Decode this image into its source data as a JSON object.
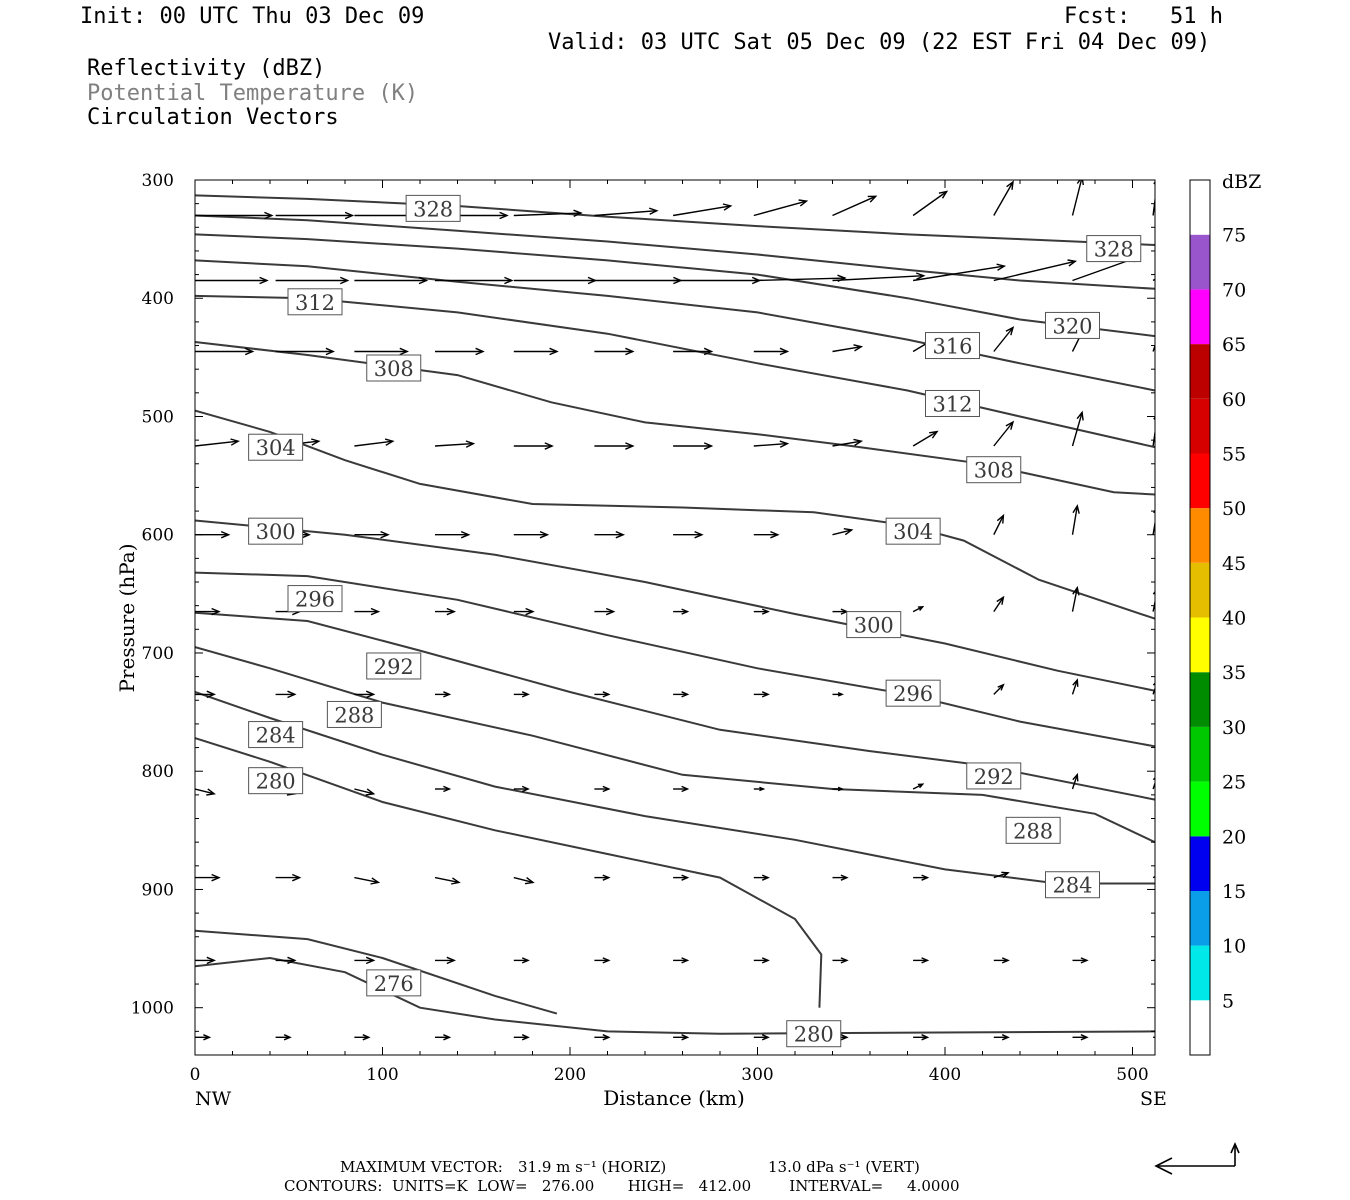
{
  "header": {
    "init": "Init: 00 UTC Thu 03 Dec 09",
    "fcst": "Fcst:   51 h",
    "valid": "Valid: 03 UTC Sat 05 Dec 09 (22 EST Fri 04 Dec 09)",
    "legend_lines": [
      "Reflectivity (dBZ)",
      "Potential Temperature (K)",
      "Circulation Vectors"
    ]
  },
  "footer": {
    "max_vector_label": "MAXIMUM VECTOR:",
    "horiz": "31.9 m s⁻¹ (HORIZ)",
    "vert": "13.0 dPa s⁻¹ (VERT)",
    "contours": "CONTOURS:  UNITS=K  LOW=   276.00       HIGH=   412.00        INTERVAL=     4.0000"
  },
  "colors": {
    "contour": "#3a3a3a",
    "colorbar": [
      "#ffffff",
      "#00e8e8",
      "#0a9ee8",
      "#0000f0",
      "#00ff00",
      "#00c800",
      "#008c00",
      "#ffff00",
      "#e6be00",
      "#ff8c00",
      "#ff0000",
      "#d60000",
      "#bc0000",
      "#ff00ff",
      "#9955cc",
      "#ffffff"
    ]
  },
  "chart_data": {
    "type": "contour",
    "xlabel": "Distance (km)",
    "ylabel": "Pressure (hPa)",
    "xlim": [
      0,
      512
    ],
    "ylim": [
      300,
      1040
    ],
    "x_ticks": [
      0,
      100,
      200,
      300,
      400,
      500
    ],
    "y_ticks": [
      300,
      400,
      500,
      600,
      700,
      800,
      900,
      1000
    ],
    "x_endpoints": [
      "NW",
      "SE"
    ],
    "colorbar": {
      "unit": "dBZ",
      "levels": [
        5,
        10,
        15,
        20,
        25,
        30,
        35,
        40,
        45,
        50,
        55,
        60,
        65,
        70,
        75
      ]
    },
    "contours": [
      {
        "theta": 328,
        "points": [
          [
            0,
            313
          ],
          [
            60,
            316
          ],
          [
            140,
            322
          ],
          [
            220,
            331
          ],
          [
            300,
            339
          ],
          [
            380,
            346
          ],
          [
            440,
            350
          ],
          [
            512,
            355
          ]
        ]
      },
      {
        "theta": 324,
        "points": [
          [
            0,
            330
          ],
          [
            60,
            334
          ],
          [
            140,
            343
          ],
          [
            220,
            352
          ],
          [
            300,
            363
          ],
          [
            380,
            376
          ],
          [
            440,
            385
          ],
          [
            512,
            392
          ]
        ]
      },
      {
        "theta": 320,
        "points": [
          [
            0,
            346
          ],
          [
            60,
            350
          ],
          [
            140,
            358
          ],
          [
            220,
            368
          ],
          [
            300,
            380
          ],
          [
            380,
            400
          ],
          [
            440,
            418
          ],
          [
            512,
            432
          ]
        ]
      },
      {
        "theta": 316,
        "points": [
          [
            0,
            368
          ],
          [
            60,
            373
          ],
          [
            140,
            386
          ],
          [
            220,
            398
          ],
          [
            300,
            412
          ],
          [
            380,
            435
          ],
          [
            440,
            455
          ],
          [
            512,
            478
          ]
        ]
      },
      {
        "theta": 312,
        "points": [
          [
            0,
            398
          ],
          [
            60,
            400
          ],
          [
            140,
            412
          ],
          [
            220,
            430
          ],
          [
            300,
            455
          ],
          [
            380,
            478
          ],
          [
            440,
            500
          ],
          [
            512,
            526
          ]
        ]
      },
      {
        "theta": 308,
        "points": [
          [
            0,
            437
          ],
          [
            60,
            448
          ],
          [
            140,
            465
          ],
          [
            190,
            488
          ],
          [
            240,
            505
          ],
          [
            300,
            515
          ],
          [
            350,
            525
          ],
          [
            420,
            540
          ],
          [
            490,
            564
          ],
          [
            512,
            566
          ]
        ]
      },
      {
        "theta": 304,
        "points": [
          [
            0,
            495
          ],
          [
            40,
            513
          ],
          [
            80,
            537
          ],
          [
            120,
            557
          ],
          [
            180,
            574
          ],
          [
            260,
            577
          ],
          [
            330,
            581
          ],
          [
            380,
            592
          ],
          [
            410,
            605
          ],
          [
            450,
            638
          ],
          [
            512,
            671
          ]
        ]
      },
      {
        "theta": 300,
        "points": [
          [
            0,
            588
          ],
          [
            80,
            600
          ],
          [
            160,
            617
          ],
          [
            240,
            640
          ],
          [
            320,
            667
          ],
          [
            400,
            692
          ],
          [
            460,
            715
          ],
          [
            512,
            732
          ]
        ]
      },
      {
        "theta": 296,
        "points": [
          [
            0,
            632
          ],
          [
            60,
            635
          ],
          [
            140,
            655
          ],
          [
            220,
            685
          ],
          [
            300,
            713
          ],
          [
            380,
            735
          ],
          [
            440,
            758
          ],
          [
            512,
            779
          ]
        ]
      },
      {
        "theta": 292,
        "points": [
          [
            0,
            666
          ],
          [
            60,
            673
          ],
          [
            120,
            698
          ],
          [
            200,
            733
          ],
          [
            280,
            765
          ],
          [
            360,
            783
          ],
          [
            420,
            795
          ],
          [
            512,
            824
          ]
        ]
      },
      {
        "theta": 288,
        "points": [
          [
            0,
            695
          ],
          [
            40,
            713
          ],
          [
            100,
            742
          ],
          [
            180,
            770
          ],
          [
            260,
            803
          ],
          [
            340,
            815
          ],
          [
            420,
            820
          ],
          [
            480,
            836
          ],
          [
            512,
            860
          ]
        ]
      },
      {
        "theta": 284,
        "points": [
          [
            0,
            733
          ],
          [
            40,
            755
          ],
          [
            100,
            786
          ],
          [
            160,
            813
          ],
          [
            240,
            838
          ],
          [
            320,
            858
          ],
          [
            400,
            883
          ],
          [
            460,
            895
          ],
          [
            512,
            895
          ]
        ]
      },
      {
        "theta": 280,
        "points": [
          [
            0,
            772
          ],
          [
            40,
            792
          ],
          [
            100,
            826
          ],
          [
            160,
            850
          ],
          [
            220,
            870
          ],
          [
            280,
            890
          ],
          [
            320,
            925
          ],
          [
            334,
            955
          ],
          [
            333,
            1000
          ]
        ]
      },
      {
        "theta": 280,
        "points": [
          [
            0,
            965
          ],
          [
            40,
            958
          ],
          [
            80,
            970
          ],
          [
            120,
            1000
          ],
          [
            160,
            1010
          ],
          [
            220,
            1020
          ],
          [
            280,
            1022
          ],
          [
            512,
            1020
          ]
        ]
      },
      {
        "theta": 276,
        "points": [
          [
            0,
            935
          ],
          [
            60,
            942
          ],
          [
            100,
            958
          ],
          [
            160,
            990
          ],
          [
            193,
            1005
          ]
        ]
      }
    ],
    "contour_labels": [
      {
        "text": "328",
        "x": 127,
        "p": 324
      },
      {
        "text": "328",
        "x": 490,
        "p": 358
      },
      {
        "text": "312",
        "x": 64,
        "p": 403
      },
      {
        "text": "320",
        "x": 468,
        "p": 423
      },
      {
        "text": "316",
        "x": 404,
        "p": 440
      },
      {
        "text": "308",
        "x": 106,
        "p": 459
      },
      {
        "text": "312",
        "x": 404,
        "p": 489
      },
      {
        "text": "304",
        "x": 43,
        "p": 526
      },
      {
        "text": "308",
        "x": 426,
        "p": 545
      },
      {
        "text": "300",
        "x": 43,
        "p": 597
      },
      {
        "text": "304",
        "x": 383,
        "p": 597
      },
      {
        "text": "296",
        "x": 64,
        "p": 654
      },
      {
        "text": "300",
        "x": 362,
        "p": 676
      },
      {
        "text": "292",
        "x": 106,
        "p": 711
      },
      {
        "text": "296",
        "x": 383,
        "p": 734
      },
      {
        "text": "288",
        "x": 85,
        "p": 752
      },
      {
        "text": "284",
        "x": 43,
        "p": 769
      },
      {
        "text": "292",
        "x": 426,
        "p": 804
      },
      {
        "text": "280",
        "x": 43,
        "p": 808
      },
      {
        "text": "288",
        "x": 447,
        "p": 850
      },
      {
        "text": "284",
        "x": 468,
        "p": 896
      },
      {
        "text": "276",
        "x": 106,
        "p": 979
      },
      {
        "text": "280",
        "x": 330,
        "p": 1022
      }
    ],
    "vectors": {
      "x": [
        0,
        43,
        85,
        128,
        170,
        213,
        255,
        298,
        340,
        383,
        426,
        468,
        511
      ],
      "p": [
        330,
        385,
        445,
        525,
        600,
        665,
        735,
        815,
        890,
        960,
        1025
      ],
      "u": [
        [
          1.6,
          1.6,
          1.5,
          1.5,
          1.4,
          1.3,
          1.2,
          1.1,
          0.9,
          0.7,
          0.4,
          0.2,
          0.1
        ],
        [
          1.5,
          1.5,
          1.5,
          1.6,
          1.7,
          1.8,
          1.8,
          1.9,
          1.9,
          1.9,
          1.7,
          1.4,
          0.9
        ],
        [
          1.2,
          1.2,
          1.1,
          1.0,
          0.9,
          0.8,
          0.8,
          0.7,
          0.6,
          0.5,
          0.4,
          0.3,
          0.2
        ],
        [
          0.9,
          0.9,
          0.8,
          0.8,
          0.8,
          0.8,
          0.8,
          0.7,
          0.6,
          0.5,
          0.4,
          0.2,
          0.1
        ],
        [
          0.7,
          0.7,
          0.7,
          0.7,
          0.7,
          0.6,
          0.6,
          0.5,
          0.4,
          0.3,
          0.2,
          0.1,
          0.1
        ],
        [
          0.5,
          0.5,
          0.5,
          0.4,
          0.4,
          0.4,
          0.3,
          0.3,
          0.3,
          0.2,
          0.2,
          0.1,
          0.1
        ],
        [
          0.4,
          0.4,
          0.4,
          0.3,
          0.3,
          0.3,
          0.3,
          0.3,
          0.2,
          0.2,
          0.2,
          0.1,
          0.1
        ],
        [
          0.4,
          0.4,
          0.4,
          0.3,
          0.3,
          0.3,
          0.3,
          0.2,
          0.2,
          0.2,
          0.1,
          0.1,
          0.1
        ],
        [
          0.5,
          0.5,
          0.5,
          0.5,
          0.4,
          0.3,
          0.3,
          0.3,
          0.3,
          0.3,
          0.3,
          0.3,
          0.2
        ],
        [
          0.4,
          0.4,
          0.4,
          0.4,
          0.3,
          0.3,
          0.3,
          0.3,
          0.3,
          0.3,
          0.3,
          0.3,
          0.2
        ],
        [
          0.3,
          0.3,
          0.3,
          0.3,
          0.3,
          0.3,
          0.3,
          0.3,
          0.3,
          0.3,
          0.3,
          0.3,
          0.2
        ]
      ],
      "w": [
        [
          0,
          0,
          0,
          0,
          0.05,
          0.1,
          0.2,
          0.3,
          0.4,
          0.5,
          0.7,
          0.8,
          0.8
        ],
        [
          0,
          0,
          0,
          0,
          0,
          0,
          0,
          0.05,
          0.1,
          0.3,
          0.4,
          0.5,
          0.6
        ],
        [
          0,
          0,
          0,
          0,
          0,
          0,
          0,
          0,
          0.1,
          0.3,
          0.5,
          0.6,
          0.6
        ],
        [
          0.1,
          0.1,
          0.1,
          0.05,
          0,
          0,
          0,
          0.05,
          0.1,
          0.3,
          0.5,
          0.7,
          0.7
        ],
        [
          0,
          0,
          0,
          0,
          0,
          0,
          0,
          0,
          0.1,
          0.2,
          0.4,
          0.6,
          0.6
        ],
        [
          0,
          0,
          0,
          0,
          0,
          0,
          0,
          0,
          0,
          0.1,
          0.3,
          0.5,
          0.5
        ],
        [
          0,
          0,
          0,
          0,
          0,
          0,
          0,
          0,
          0,
          0.1,
          0.2,
          0.3,
          0.3
        ],
        [
          -0.1,
          -0.1,
          -0.1,
          0,
          0,
          0,
          0,
          0,
          0,
          0.1,
          0.2,
          0.3,
          0.3
        ],
        [
          0,
          0,
          -0.1,
          -0.1,
          -0.1,
          0,
          0,
          0,
          0,
          0,
          0.1,
          0.1,
          0.1
        ],
        [
          0,
          0,
          0,
          0,
          0,
          0,
          0,
          0,
          0,
          0,
          0,
          0,
          0
        ],
        [
          0,
          0,
          0,
          0,
          0,
          0,
          0,
          0,
          0,
          0,
          0,
          0,
          0
        ]
      ]
    }
  }
}
